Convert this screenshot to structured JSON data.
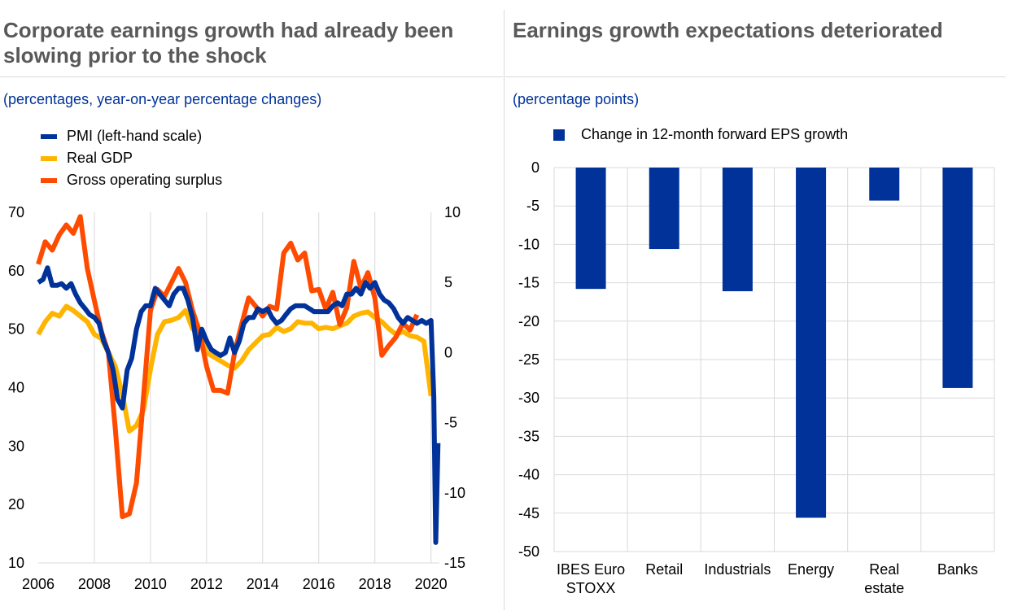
{
  "left": {
    "title": "Corporate earnings growth had already been slowing prior to the shock",
    "subtitle": "(percentages, year-on-year percentage changes)"
  },
  "right": {
    "title": "Earnings growth expectations deteriorated",
    "subtitle": "(percentage points)"
  },
  "colors": {
    "pmi": "#003299",
    "gdp": "#ffb400",
    "gos": "#ff4b00",
    "grid": "#d9d9d9",
    "title": "#595959",
    "subtitle": "#003299"
  },
  "chart_data": [
    {
      "type": "line",
      "title": "Corporate earnings growth had already been slowing prior to the shock",
      "subtitle": "(percentages, year-on-year percentage changes)",
      "xlim": [
        2006,
        2020.3
      ],
      "x_ticks": [
        "2006",
        "2008",
        "2010",
        "2012",
        "2014",
        "2016",
        "2018",
        "2020"
      ],
      "y_left": {
        "lim": [
          10,
          70
        ],
        "ticks": [
          "70",
          "60",
          "50",
          "40",
          "30",
          "20",
          "10"
        ]
      },
      "y_right": {
        "lim": [
          -15,
          10
        ],
        "ticks": [
          "10",
          "5",
          "0",
          "-5",
          "-10",
          "-15"
        ]
      },
      "grid": "vertical",
      "legend_position": "top-left",
      "series": [
        {
          "name": "PMI (left-hand scale)",
          "axis": "left",
          "color": "#003299",
          "x": [
            2006.0,
            2006.17,
            2006.33,
            2006.5,
            2006.67,
            2006.83,
            2007.0,
            2007.17,
            2007.33,
            2007.5,
            2007.67,
            2007.83,
            2008.0,
            2008.17,
            2008.33,
            2008.5,
            2008.67,
            2008.83,
            2009.0,
            2009.17,
            2009.33,
            2009.5,
            2009.67,
            2009.83,
            2010.0,
            2010.17,
            2010.33,
            2010.5,
            2010.67,
            2010.83,
            2011.0,
            2011.17,
            2011.33,
            2011.5,
            2011.67,
            2011.83,
            2012.0,
            2012.17,
            2012.33,
            2012.5,
            2012.67,
            2012.83,
            2013.0,
            2013.17,
            2013.33,
            2013.5,
            2013.67,
            2013.83,
            2014.0,
            2014.17,
            2014.33,
            2014.5,
            2014.67,
            2014.83,
            2015.0,
            2015.17,
            2015.33,
            2015.5,
            2015.67,
            2015.83,
            2016.0,
            2016.17,
            2016.33,
            2016.5,
            2016.67,
            2016.83,
            2017.0,
            2017.17,
            2017.33,
            2017.5,
            2017.67,
            2017.83,
            2018.0,
            2018.17,
            2018.33,
            2018.5,
            2018.67,
            2018.83,
            2019.0,
            2019.17,
            2019.33,
            2019.5,
            2019.67,
            2019.83,
            2020.0,
            2020.1,
            2020.17,
            2020.25
          ],
          "values": [
            58,
            58.5,
            60.5,
            57.5,
            57.5,
            57.8,
            57,
            57.8,
            56,
            54.5,
            53.5,
            52.5,
            52,
            51,
            48,
            46,
            43,
            38,
            36.5,
            43,
            45,
            50,
            53,
            54,
            54,
            57,
            56,
            55,
            54,
            56,
            57,
            57,
            55,
            52,
            46.5,
            50,
            48,
            46.5,
            46,
            45.5,
            46,
            48.5,
            46,
            48,
            51,
            52,
            52,
            53.5,
            53,
            53.5,
            52,
            51,
            51.5,
            52.5,
            53.5,
            54,
            54,
            54,
            53.5,
            53,
            53,
            53,
            53,
            54,
            54.5,
            54,
            56,
            56,
            57,
            56,
            58,
            57,
            58,
            56,
            55,
            54.5,
            53.5,
            52,
            51,
            52,
            51.5,
            51,
            51.5,
            51,
            51.5,
            38.5,
            13.5,
            30.5
          ]
        },
        {
          "name": "Real GDP",
          "axis": "right",
          "color": "#ffb400",
          "x": [
            2006.0,
            2006.25,
            2006.5,
            2006.75,
            2007.0,
            2007.25,
            2007.5,
            2007.75,
            2008.0,
            2008.25,
            2008.5,
            2008.75,
            2009.0,
            2009.25,
            2009.5,
            2009.75,
            2010.0,
            2010.25,
            2010.5,
            2010.75,
            2011.0,
            2011.25,
            2011.5,
            2011.75,
            2012.0,
            2012.25,
            2012.5,
            2012.75,
            2013.0,
            2013.25,
            2013.5,
            2013.75,
            2014.0,
            2014.25,
            2014.5,
            2014.75,
            2015.0,
            2015.25,
            2015.5,
            2015.75,
            2016.0,
            2016.25,
            2016.5,
            2016.75,
            2017.0,
            2017.25,
            2017.5,
            2017.75,
            2018.0,
            2018.25,
            2018.5,
            2018.75,
            2019.0,
            2019.25,
            2019.5,
            2019.75,
            2020.0
          ],
          "values": [
            1.3,
            2.2,
            2.8,
            2.6,
            3.3,
            3,
            2.6,
            2.2,
            1.3,
            1,
            0,
            -1,
            -3,
            -5.6,
            -5.2,
            -4.1,
            -1.2,
            1.3,
            2.2,
            2.3,
            2.5,
            3,
            1.7,
            1.3,
            0,
            -0.3,
            -0.6,
            -0.9,
            -1.1,
            -0.6,
            0.2,
            0.7,
            1.2,
            1.3,
            1.8,
            1.5,
            1.7,
            2.2,
            2.1,
            2.1,
            1.7,
            1.8,
            1.7,
            1.9,
            2.1,
            2.6,
            2.8,
            2.9,
            2.5,
            2.2,
            1.7,
            1.3,
            1.5,
            1.2,
            1.1,
            0.8,
            -3.1
          ]
        },
        {
          "name": "Gross operating surplus",
          "axis": "right",
          "color": "#ff4b00",
          "x": [
            2006.0,
            2006.25,
            2006.5,
            2006.75,
            2007.0,
            2007.25,
            2007.5,
            2007.75,
            2008.0,
            2008.25,
            2008.5,
            2008.75,
            2009.0,
            2009.25,
            2009.5,
            2009.75,
            2010.0,
            2010.25,
            2010.5,
            2010.75,
            2011.0,
            2011.25,
            2011.5,
            2011.75,
            2012.0,
            2012.25,
            2012.5,
            2012.75,
            2013.0,
            2013.25,
            2013.5,
            2013.75,
            2014.0,
            2014.25,
            2014.5,
            2014.75,
            2015.0,
            2015.25,
            2015.5,
            2015.75,
            2016.0,
            2016.25,
            2016.5,
            2016.75,
            2017.0,
            2017.25,
            2017.5,
            2017.75,
            2018.0,
            2018.25,
            2018.5,
            2018.75,
            2019.0,
            2019.25,
            2019.5
          ],
          "values": [
            6.3,
            7.9,
            7.3,
            8.4,
            9.1,
            8.5,
            9.7,
            6,
            3.7,
            1.5,
            0,
            -5.5,
            -11.7,
            -11.5,
            -9.3,
            -3.2,
            3,
            4.5,
            4,
            5,
            6,
            5,
            3,
            1.5,
            -1,
            -2.7,
            -2.7,
            -2.9,
            0,
            2,
            3.9,
            3.3,
            2.6,
            3.3,
            3.1,
            7.1,
            7.8,
            6.6,
            7.1,
            4.4,
            4.5,
            3.1,
            4.3,
            2,
            3.2,
            6.5,
            4.6,
            5.7,
            3.9,
            -0.2,
            0.5,
            1.1,
            2.1,
            1.6,
            2.7
          ]
        }
      ]
    },
    {
      "type": "bar",
      "title": "Earnings growth expectations deteriorated",
      "subtitle": "(percentage points)",
      "categories": [
        "IBES Euro STOXX",
        "Retail",
        "Industrials",
        "Energy",
        "Real estate",
        "Banks"
      ],
      "category_lines": [
        [
          "IBES Euro",
          "STOXX"
        ],
        [
          "Retail"
        ],
        [
          "Industrials"
        ],
        [
          "Energy"
        ],
        [
          "Real",
          "estate"
        ],
        [
          "Banks"
        ]
      ],
      "series": [
        {
          "name": "Change in 12-month forward EPS growth",
          "color": "#003299",
          "values": [
            -15.8,
            -10.6,
            -16.1,
            -45.6,
            -4.3,
            -28.7
          ]
        }
      ],
      "ylim": [
        -50,
        0
      ],
      "y_ticks": [
        "0",
        "-5",
        "-10",
        "-15",
        "-20",
        "-25",
        "-30",
        "-35",
        "-40",
        "-45",
        "-50"
      ],
      "grid": "both",
      "legend_position": "top-left"
    }
  ]
}
